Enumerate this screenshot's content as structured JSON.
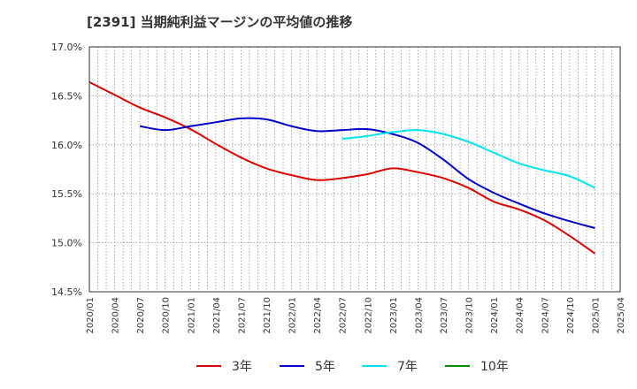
{
  "chart_data": {
    "type": "line",
    "title": "[2391]  当期純利益マージンの平均値の推移",
    "xlabel": "",
    "ylabel": "",
    "x_ticks": [
      "2020/01",
      "2020/04",
      "2020/07",
      "2020/10",
      "2021/01",
      "2021/04",
      "2021/07",
      "2021/10",
      "2022/01",
      "2022/04",
      "2022/07",
      "2022/10",
      "2023/01",
      "2023/04",
      "2023/07",
      "2023/10",
      "2024/01",
      "2024/04",
      "2024/07",
      "2024/10",
      "2025/01",
      "2025/04"
    ],
    "y_ticks": [
      "14.5%",
      "15.0%",
      "15.5%",
      "16.0%",
      "16.5%",
      "17.0%"
    ],
    "ylim": [
      14.5,
      17.0
    ],
    "grid": true,
    "legend_position": "bottom",
    "series": [
      {
        "name": "3年",
        "color": "#dd0000",
        "points": [
          [
            "2020/01",
            16.64
          ],
          [
            "2020/04",
            16.51
          ],
          [
            "2020/07",
            16.38
          ],
          [
            "2020/10",
            16.28
          ],
          [
            "2021/01",
            16.16
          ],
          [
            "2021/04",
            16.01
          ],
          [
            "2021/07",
            15.87
          ],
          [
            "2021/10",
            15.76
          ],
          [
            "2022/01",
            15.69
          ],
          [
            "2022/04",
            15.64
          ],
          [
            "2022/07",
            15.66
          ],
          [
            "2022/10",
            15.7
          ],
          [
            "2023/01",
            15.76
          ],
          [
            "2023/04",
            15.72
          ],
          [
            "2023/07",
            15.66
          ],
          [
            "2023/10",
            15.56
          ],
          [
            "2024/01",
            15.42
          ],
          [
            "2024/04",
            15.34
          ],
          [
            "2024/07",
            15.23
          ],
          [
            "2024/10",
            15.07
          ],
          [
            "2025/01",
            14.89
          ]
        ]
      },
      {
        "name": "5年",
        "color": "#0000cc",
        "points": [
          [
            "2020/07",
            16.19
          ],
          [
            "2020/10",
            16.15
          ],
          [
            "2021/01",
            16.19
          ],
          [
            "2021/04",
            16.23
          ],
          [
            "2021/07",
            16.27
          ],
          [
            "2021/10",
            16.26
          ],
          [
            "2022/01",
            16.19
          ],
          [
            "2022/04",
            16.14
          ],
          [
            "2022/07",
            16.15
          ],
          [
            "2022/10",
            16.16
          ],
          [
            "2023/01",
            16.11
          ],
          [
            "2023/04",
            16.02
          ],
          [
            "2023/07",
            15.85
          ],
          [
            "2023/10",
            15.65
          ],
          [
            "2024/01",
            15.51
          ],
          [
            "2024/04",
            15.4
          ],
          [
            "2024/07",
            15.3
          ],
          [
            "2024/10",
            15.22
          ],
          [
            "2025/01",
            15.15
          ]
        ]
      },
      {
        "name": "7年",
        "color": "#00e5ee",
        "points": [
          [
            "2022/07",
            16.06
          ],
          [
            "2022/10",
            16.09
          ],
          [
            "2023/01",
            16.13
          ],
          [
            "2023/04",
            16.15
          ],
          [
            "2023/07",
            16.11
          ],
          [
            "2023/10",
            16.03
          ],
          [
            "2024/01",
            15.92
          ],
          [
            "2024/04",
            15.81
          ],
          [
            "2024/07",
            15.74
          ],
          [
            "2024/10",
            15.68
          ],
          [
            "2025/01",
            15.56
          ]
        ]
      },
      {
        "name": "10年",
        "color": "#008800",
        "points": []
      }
    ]
  }
}
